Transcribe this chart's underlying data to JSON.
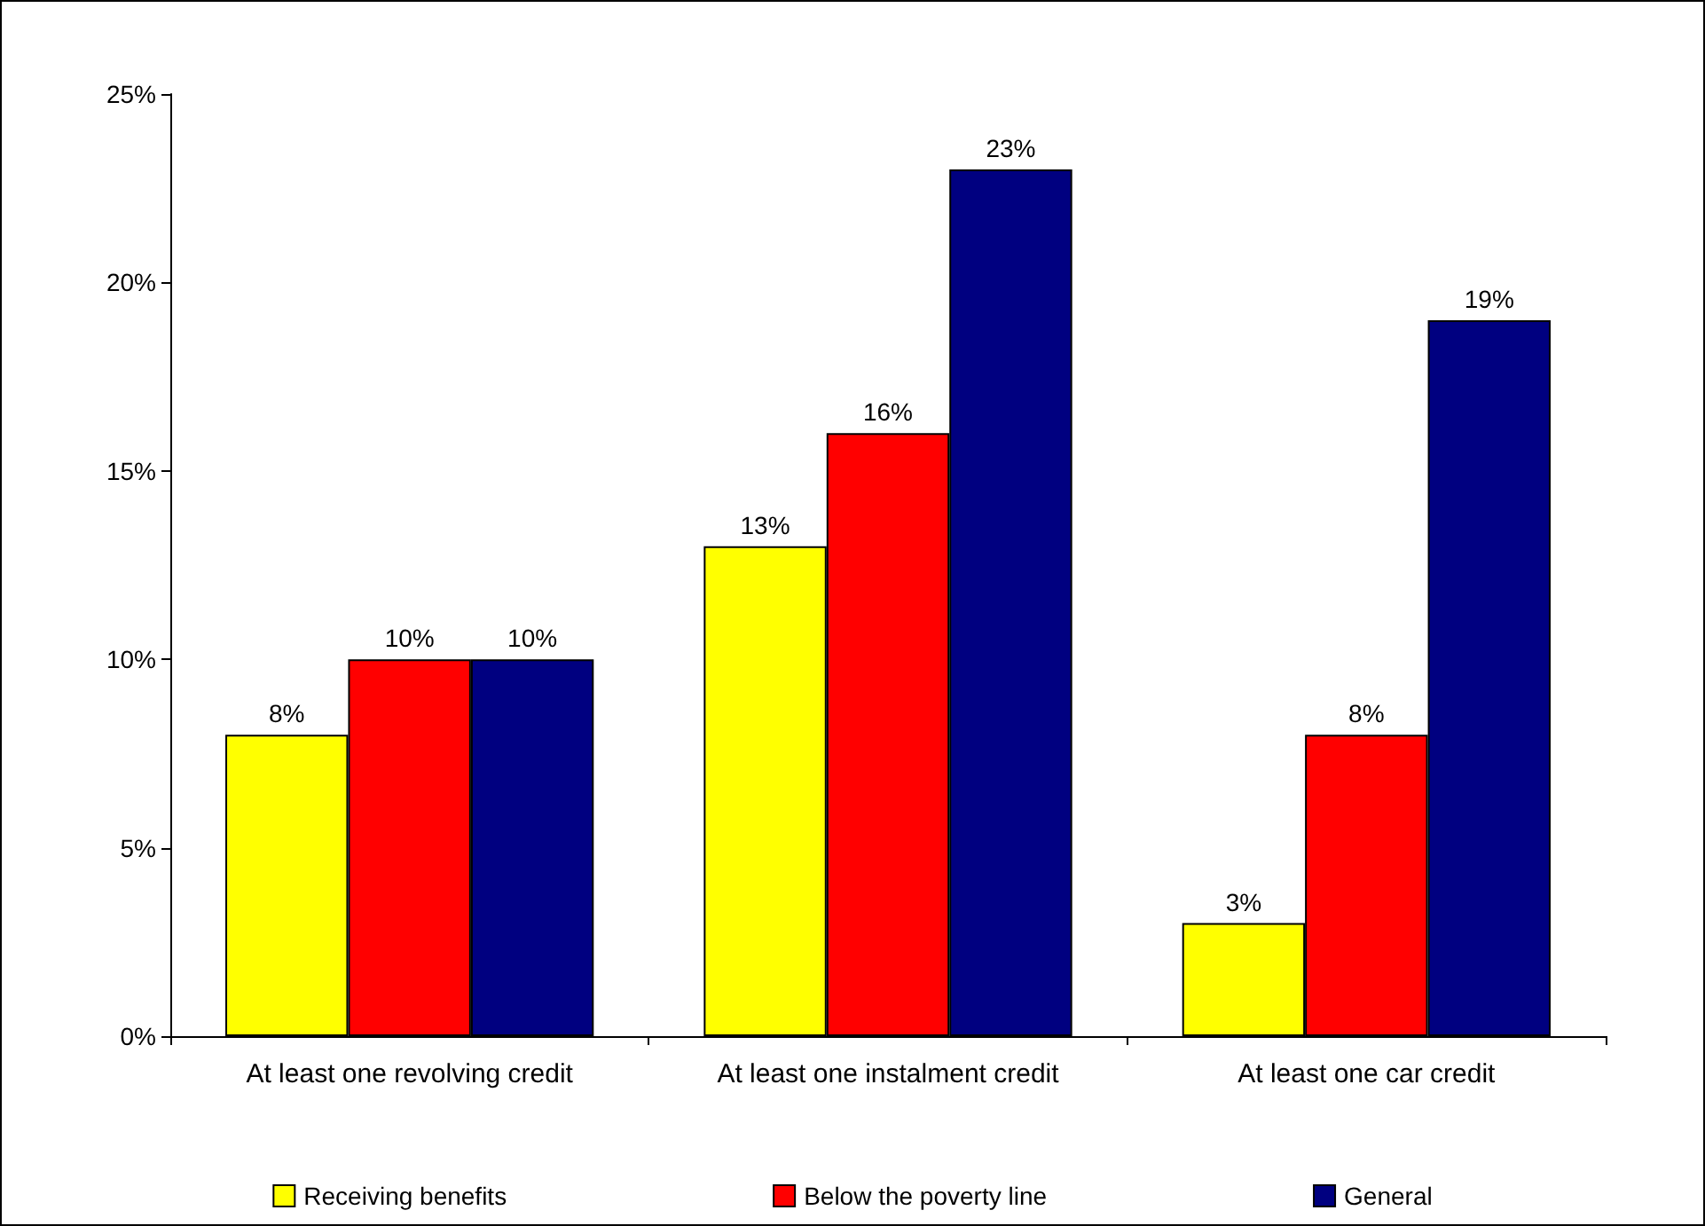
{
  "chart_data": {
    "type": "bar",
    "categories": [
      "At least one revolving credit",
      "At least one instalment credit",
      "At least one car credit"
    ],
    "series": [
      {
        "name": "Receiving benefits",
        "color": "#ffff00",
        "values": [
          8,
          13,
          3
        ],
        "value_labels": [
          "8%",
          "13%",
          "3%"
        ]
      },
      {
        "name": "Below the poverty line",
        "color": "#ff0000",
        "values": [
          10,
          16,
          8
        ],
        "value_labels": [
          "10%",
          "16%",
          "8%"
        ]
      },
      {
        "name": "General",
        "color": "#000080",
        "values": [
          10,
          23,
          19
        ],
        "value_labels": [
          "10%",
          "23%",
          "19%"
        ]
      }
    ],
    "ylim": [
      0,
      25
    ],
    "yticks": [
      {
        "value": 0,
        "label": "0%"
      },
      {
        "value": 5,
        "label": "5%"
      },
      {
        "value": 10,
        "label": "10%"
      },
      {
        "value": 15,
        "label": "15%"
      },
      {
        "value": 20,
        "label": "20%"
      },
      {
        "value": 25,
        "label": "25%"
      }
    ],
    "grid": false,
    "legend": "bottom"
  }
}
